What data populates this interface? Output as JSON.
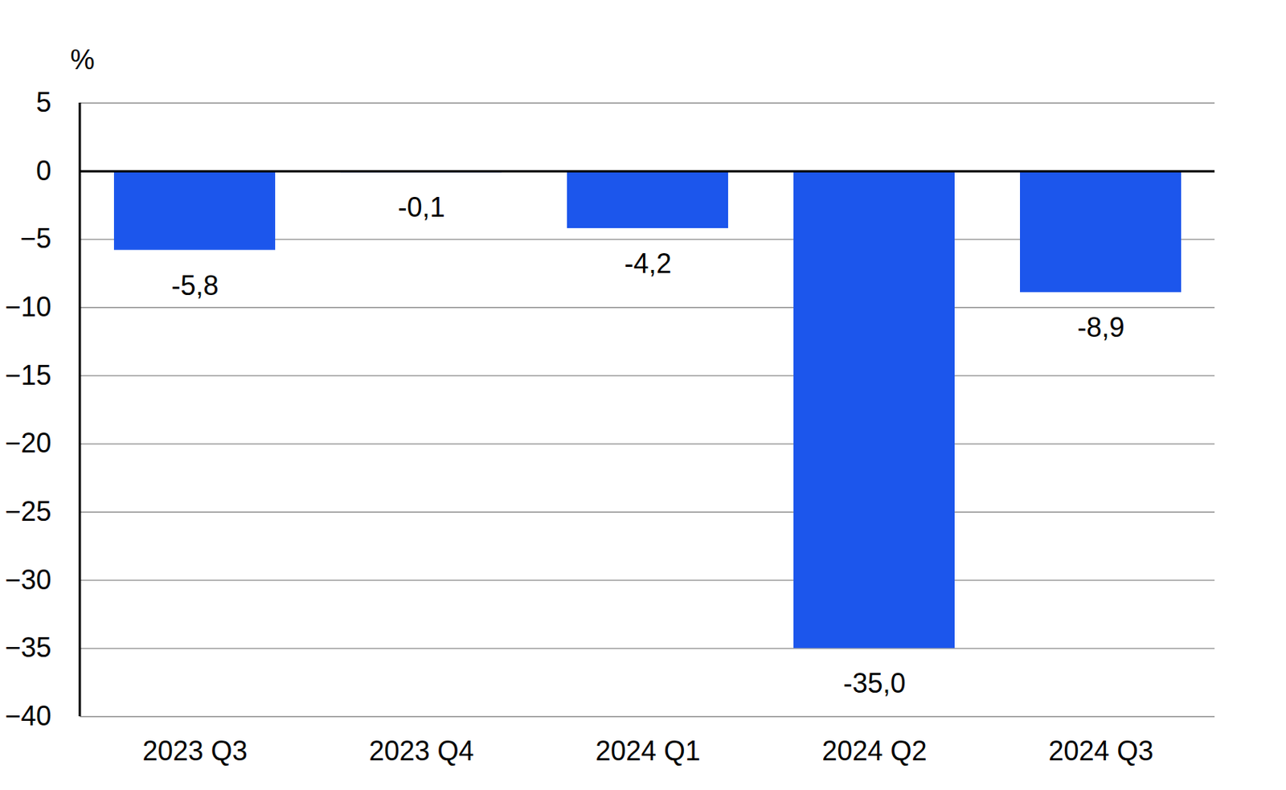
{
  "chart_data": {
    "type": "bar",
    "y_label": "%",
    "categories": [
      "2023 Q3",
      "2023 Q4",
      "2024 Q1",
      "2024 Q2",
      "2024 Q3"
    ],
    "values": [
      -5.8,
      -0.1,
      -4.2,
      -35.0,
      -8.9
    ],
    "value_labels": [
      "-5,8",
      "-0,1",
      "-4,2",
      "-35,0",
      "-8,9"
    ],
    "color": "#1c56ec",
    "ylim": [
      -40,
      5
    ],
    "yticks": [
      -40,
      -35,
      -30,
      -25,
      -20,
      -15,
      -10,
      -5,
      0,
      5
    ],
    "grid": true,
    "data_labels": true
  }
}
